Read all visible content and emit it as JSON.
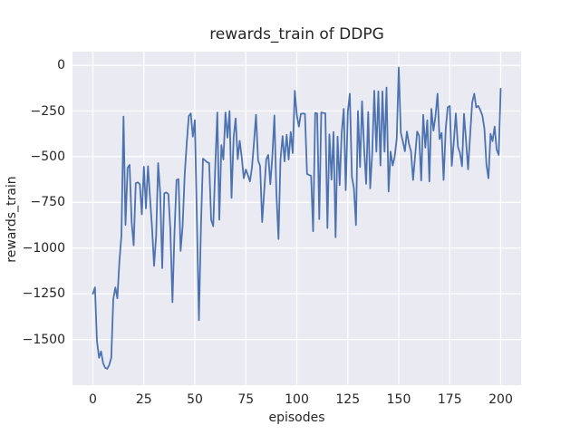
{
  "chart_data": {
    "type": "line",
    "title": "rewards_train of DDPG",
    "xlabel": "episodes",
    "ylabel": "rewards_train",
    "grid": true,
    "legend": false,
    "plot_background": "#eaeaf2",
    "grid_color": "#ffffff",
    "line_color": "#4c72b0",
    "text_color": "#262626",
    "xlim": [
      -10,
      210
    ],
    "ylim": [
      -1750,
      75
    ],
    "x_ticks": [
      0,
      25,
      50,
      75,
      100,
      125,
      150,
      175,
      200
    ],
    "x_tick_labels": [
      "0",
      "25",
      "50",
      "75",
      "100",
      "125",
      "150",
      "175",
      "200"
    ],
    "y_ticks": [
      0,
      -250,
      -500,
      -750,
      -1000,
      -1250,
      -1500
    ],
    "y_tick_labels": [
      "0",
      "−250",
      "−500",
      "−750",
      "−1000",
      "−1250",
      "−1500"
    ],
    "x_start": 0,
    "x_step": 1,
    "values": [
      -1250,
      -1215,
      -1510,
      -1600,
      -1565,
      -1630,
      -1655,
      -1660,
      -1640,
      -1600,
      -1280,
      -1215,
      -1275,
      -1070,
      -930,
      -280,
      -873,
      -560,
      -545,
      -860,
      -985,
      -645,
      -640,
      -650,
      -815,
      -555,
      -783,
      -552,
      -720,
      -891,
      -1098,
      -932,
      -535,
      -700,
      -1110,
      -700,
      -695,
      -705,
      -900,
      -1296,
      -920,
      -627,
      -623,
      -1015,
      -880,
      -600,
      -430,
      -278,
      -263,
      -390,
      -300,
      -850,
      -1395,
      -870,
      -510,
      -520,
      -530,
      -535,
      -845,
      -880,
      -560,
      -258,
      -845,
      -437,
      -515,
      -258,
      -395,
      -250,
      -725,
      -395,
      -290,
      -513,
      -413,
      -505,
      -618,
      -570,
      -600,
      -635,
      -560,
      -420,
      -270,
      -520,
      -550,
      -858,
      -690,
      -515,
      -490,
      -650,
      -500,
      -274,
      -700,
      -950,
      -515,
      -387,
      -525,
      -380,
      -515,
      -365,
      -480,
      -139,
      -271,
      -335,
      -265,
      -263,
      -265,
      -594,
      -600,
      -605,
      -908,
      -260,
      -263,
      -842,
      -258,
      -260,
      -262,
      -890,
      -378,
      -625,
      -365,
      -941,
      -390,
      -655,
      -372,
      -238,
      -683,
      -254,
      -155,
      -610,
      -672,
      -874,
      -250,
      -557,
      -197,
      -457,
      -648,
      -255,
      -673,
      -472,
      -139,
      -472,
      -142,
      -548,
      -142,
      -472,
      -122,
      -690,
      -472,
      -548,
      -500,
      -400,
      -12,
      -370,
      -415,
      -470,
      -362,
      -430,
      -470,
      -627,
      -500,
      -362,
      -385,
      -630,
      -271,
      -450,
      -300,
      -635,
      -238,
      -357,
      -280,
      -155,
      -403,
      -370,
      -627,
      -350,
      -230,
      -222,
      -550,
      -415,
      -263,
      -445,
      -478,
      -552,
      -265,
      -415,
      -569,
      -380,
      -205,
      -155,
      -230,
      -222,
      -245,
      -275,
      -345,
      -544,
      -618,
      -375,
      -415,
      -335,
      -460,
      -490,
      -128
    ]
  }
}
